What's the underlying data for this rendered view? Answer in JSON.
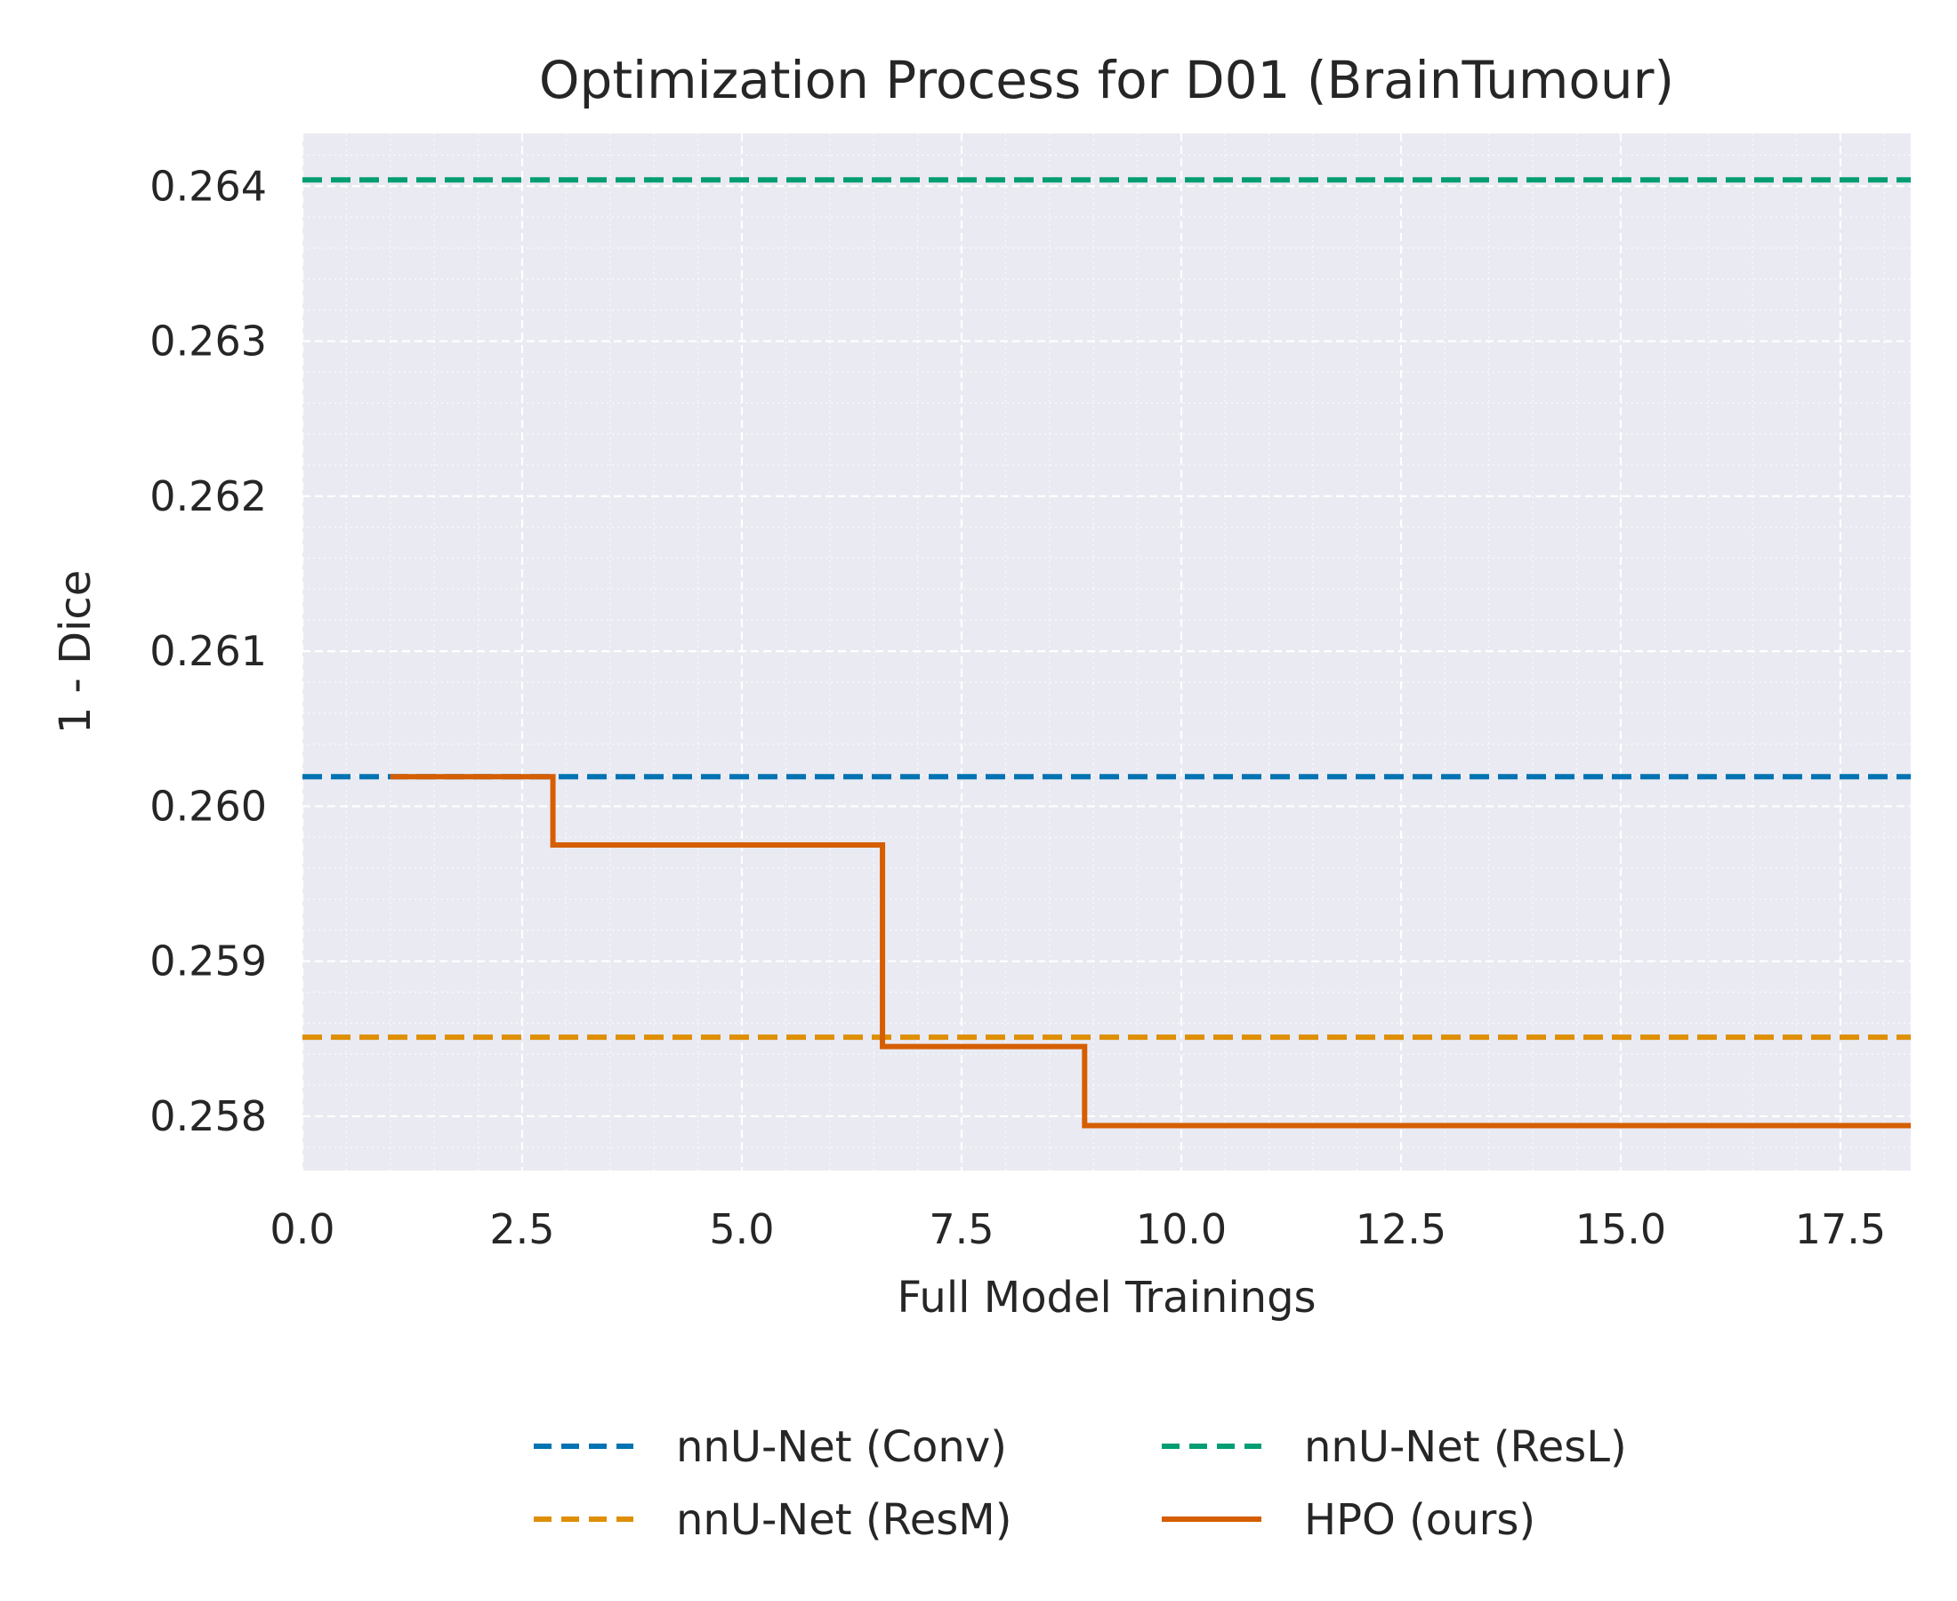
{
  "chart_data": {
    "type": "line",
    "title": "Optimization Process for D01 (BrainTumour)",
    "xlabel": "Full Model Trainings",
    "ylabel": "1 - Dice",
    "xlim": [
      0.0,
      18.3
    ],
    "ylim": [
      0.25765,
      0.26434
    ],
    "xticks": [
      0.0,
      2.5,
      5.0,
      7.5,
      10.0,
      12.5,
      15.0,
      17.5
    ],
    "xtick_labels": [
      "0.0",
      "2.5",
      "5.0",
      "7.5",
      "10.0",
      "12.5",
      "15.0",
      "17.5"
    ],
    "yticks": [
      0.258,
      0.259,
      0.26,
      0.261,
      0.262,
      0.263,
      0.264
    ],
    "ytick_labels": [
      "0.258",
      "0.259",
      "0.260",
      "0.261",
      "0.262",
      "0.263",
      "0.264"
    ],
    "grid": true,
    "legend_position": "bottom-center",
    "background": "#eaeaf2",
    "series": [
      {
        "name": "nnU-Net (Conv)",
        "style": "dashed",
        "color": "#0173b2",
        "kind": "hline",
        "y": 0.26019
      },
      {
        "name": "nnU-Net (ResL)",
        "style": "dashed",
        "color": "#029e73",
        "kind": "hline",
        "y": 0.26404
      },
      {
        "name": "nnU-Net (ResM)",
        "style": "dashed",
        "color": "#de8f05",
        "kind": "hline",
        "y": 0.25851
      },
      {
        "name": "HPO (ours)",
        "style": "solid",
        "color": "#d55e00",
        "kind": "step",
        "x": [
          1.0,
          2.85,
          6.6,
          8.9,
          18.3
        ],
        "y": [
          0.26019,
          0.25975,
          0.25845,
          0.25794,
          0.25794
        ]
      }
    ]
  }
}
